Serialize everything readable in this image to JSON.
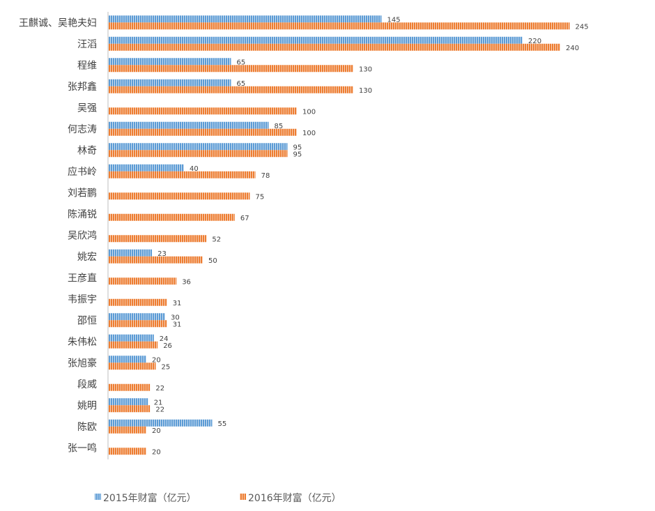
{
  "chart_data": {
    "type": "bar",
    "orientation": "horizontal",
    "title": "",
    "xlabel": "",
    "ylabel": "",
    "xlim": [
      0,
      250
    ],
    "grid": false,
    "legend_position": "bottom",
    "categories": [
      "王麒诚、吴艳夫妇",
      "汪滔",
      "程维",
      "张邦鑫",
      "吴强",
      "何志涛",
      "林奇",
      "应书岭",
      "刘若鹏",
      "陈涌锐",
      "吴欣鸿",
      "姚宏",
      "王彦直",
      "韦振宇",
      "邵恒",
      "朱伟松",
      "张旭豪",
      "段威",
      "姚明",
      "陈欧",
      "张一鸣"
    ],
    "series": [
      {
        "name": "2015年财富（亿元）",
        "color": "#5b9bd5",
        "values": [
          145,
          220,
          65,
          65,
          null,
          85,
          95,
          40,
          null,
          null,
          null,
          23,
          null,
          null,
          30,
          24,
          20,
          null,
          21,
          55,
          null
        ]
      },
      {
        "name": "2016年财富（亿元）",
        "color": "#ed7d31",
        "values": [
          245,
          240,
          130,
          130,
          100,
          100,
          95,
          78,
          75,
          67,
          52,
          50,
          36,
          31,
          31,
          26,
          25,
          22,
          22,
          20,
          20
        ]
      }
    ]
  }
}
